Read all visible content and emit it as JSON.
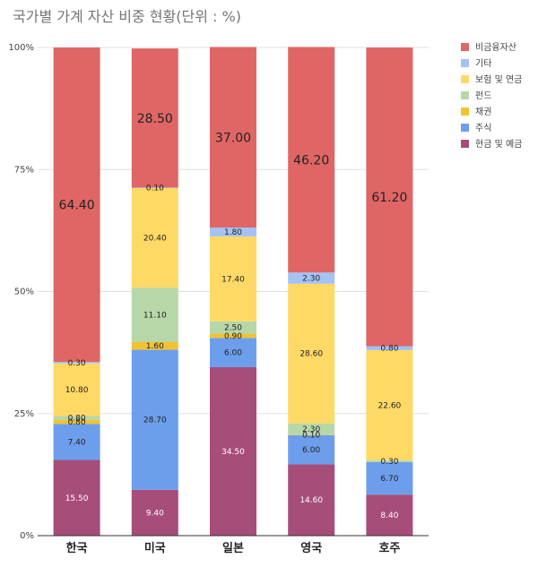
{
  "chart_data": {
    "type": "bar",
    "stacked": true,
    "title": "국가별 가계 자산 비중 현황(단위 : %)",
    "categories": [
      "한국",
      "미국",
      "일본",
      "영국",
      "호주"
    ],
    "y_ticks": [
      "0%",
      "25%",
      "50%",
      "75%",
      "100%"
    ],
    "ylim": [
      0,
      100
    ],
    "series": [
      {
        "name": "현금 및 예금",
        "color": "#a64d79",
        "values": [
          15.5,
          9.4,
          34.5,
          14.6,
          8.4
        ],
        "labels": [
          "15.50",
          "9.40",
          "34.50",
          "14.60",
          "8.40"
        ]
      },
      {
        "name": "주식",
        "color": "#6d9eeb",
        "values": [
          7.4,
          28.7,
          6.0,
          6.0,
          6.7
        ],
        "labels": [
          "7.40",
          "28.70",
          "6.00",
          "6.00",
          "6.70"
        ]
      },
      {
        "name": "채권",
        "color": "#f1c232",
        "values": [
          0.8,
          1.6,
          0.9,
          0.1,
          0.0
        ],
        "labels": [
          "0.80",
          "1.60",
          "0.90",
          "0.10",
          ""
        ]
      },
      {
        "name": "펀드",
        "color": "#b6d7a8",
        "values": [
          0.8,
          11.1,
          2.5,
          2.3,
          0.3
        ],
        "labels": [
          "0.80",
          "11.10",
          "2.50",
          "2.30",
          "0.30"
        ]
      },
      {
        "name": "보험 및 연금",
        "color": "#ffd966",
        "values": [
          10.8,
          20.4,
          17.4,
          28.6,
          22.6
        ],
        "labels": [
          "10.80",
          "20.40",
          "17.40",
          "28.60",
          "22.60"
        ]
      },
      {
        "name": "기타",
        "color": "#a4c2f4",
        "values": [
          0.3,
          0.1,
          1.8,
          2.3,
          0.8
        ],
        "labels": [
          "0.30",
          "0.10",
          "1.80",
          "2.30",
          "0.80"
        ]
      },
      {
        "name": "비금융자산",
        "color": "#e06666",
        "values": [
          64.4,
          28.5,
          37.0,
          46.2,
          61.2
        ],
        "labels": [
          "64.40",
          "28.50",
          "37.00",
          "46.20",
          "61.20"
        ]
      }
    ],
    "legend_position": "top-right"
  }
}
